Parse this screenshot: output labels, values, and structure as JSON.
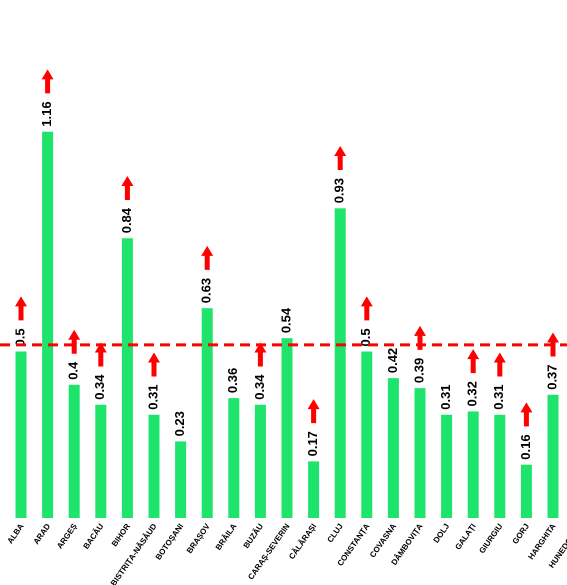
{
  "chart_data": {
    "type": "bar",
    "categories": [
      "ALBA",
      "ARAD",
      "ARGEȘ",
      "BACĂU",
      "BIHOR",
      "BISTRIȚA-NĂSĂUD",
      "BOTOȘANI",
      "BRAȘOV",
      "BRĂILA",
      "BUZĂU",
      "CARAȘ-SEVERIN",
      "CĂLĂRAȘI",
      "CLUJ",
      "CONSTANȚA",
      "COVASNA",
      "DÂMBOVIȚA",
      "DOLJ",
      "GALAȚI",
      "GIURGIU",
      "GORJ",
      "HARGHITA",
      "HUNEDOARA"
    ],
    "values": [
      0.5,
      1.16,
      0.4,
      0.34,
      0.84,
      0.31,
      0.23,
      0.63,
      0.36,
      0.34,
      0.54,
      0.17,
      0.93,
      0.5,
      0.42,
      0.39,
      0.31,
      0.32,
      0.31,
      0.16,
      0.37,
      null
    ],
    "color": "#1fe46c",
    "increase": [
      true,
      true,
      true,
      true,
      true,
      true,
      false,
      true,
      false,
      true,
      false,
      true,
      true,
      true,
      false,
      true,
      false,
      true,
      true,
      true,
      true,
      null
    ],
    "arrow_color": "#ff0000",
    "average": 0.52,
    "average_color": "#ff0000",
    "ylim": [
      0,
      1.3
    ]
  }
}
